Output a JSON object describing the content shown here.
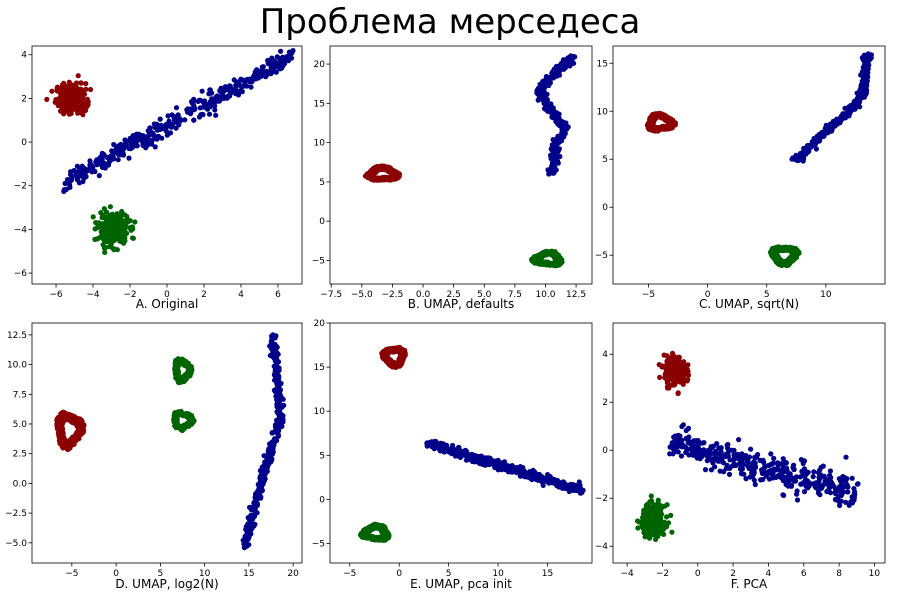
{
  "title": "Проблема мерседеса",
  "colors": {
    "red": "#8b0000",
    "green": "#006400",
    "blue": "#00008b"
  },
  "chart_data": [
    {
      "type": "scatter",
      "label": "A. Original",
      "xlim": [
        -7.3,
        7.3
      ],
      "ylim": [
        -6.5,
        4.4
      ],
      "xticks": [
        -6,
        -4,
        -2,
        0,
        2,
        4,
        6
      ],
      "yticks": [
        -6,
        -4,
        -2,
        0,
        2,
        4
      ],
      "series": [
        {
          "color": "red",
          "shape": "blob",
          "center": [
            -5.2,
            2.0
          ],
          "spread": [
            0.8,
            0.7
          ],
          "n": 260
        },
        {
          "color": "green",
          "shape": "blob",
          "center": [
            -2.9,
            -4.0
          ],
          "spread": [
            0.8,
            0.7
          ],
          "n": 300
        },
        {
          "color": "blue",
          "shape": "line",
          "from": [
            -5.5,
            -1.8
          ],
          "to": [
            6.8,
            3.9
          ],
          "width": 0.55,
          "n": 420
        }
      ]
    },
    {
      "type": "scatter",
      "label": "B. UMAP, defaults",
      "xlim": [
        -7.6,
        13.8
      ],
      "ylim": [
        -8.0,
        22.3
      ],
      "xticks": [
        -7.5,
        -5.0,
        -2.5,
        0.0,
        2.5,
        5.0,
        7.5,
        10.0,
        12.5
      ],
      "yticks": [
        -5,
        0,
        5,
        10,
        15,
        20
      ],
      "series": [
        {
          "color": "red",
          "shape": "ring",
          "center": [
            -3.3,
            6.0
          ],
          "spread": [
            2.7,
            1.8
          ],
          "n": 320
        },
        {
          "color": "green",
          "shape": "ring",
          "center": [
            10.2,
            -4.8
          ],
          "spread": [
            2.4,
            1.8
          ],
          "n": 320
        },
        {
          "color": "blue",
          "shape": "path",
          "points": [
            [
              12.2,
              20.8
            ],
            [
              11.2,
              19.5
            ],
            [
              9.5,
              16.8
            ],
            [
              10.1,
              14.8
            ],
            [
              10.7,
              13.5
            ],
            [
              11.6,
              12.0
            ],
            [
              10.8,
              9.5
            ],
            [
              10.5,
              6.0
            ]
          ],
          "width": 0.55,
          "n": 380
        }
      ]
    },
    {
      "type": "scatter",
      "label": "C. UMAP, sqrt(N)",
      "xlim": [
        -8.0,
        15.0
      ],
      "ylim": [
        -8.0,
        16.8
      ],
      "xticks": [
        -5,
        0,
        5,
        10
      ],
      "yticks": [
        -5,
        0,
        5,
        10,
        15
      ],
      "series": [
        {
          "color": "red",
          "shape": "ring",
          "center": [
            -4.0,
            8.8
          ],
          "spread": [
            2.3,
            1.8
          ],
          "n": 320
        },
        {
          "color": "green",
          "shape": "ring",
          "center": [
            6.5,
            -5.0
          ],
          "spread": [
            2.3,
            2.0
          ],
          "n": 320
        },
        {
          "color": "blue",
          "shape": "path",
          "points": [
            [
              7.5,
              4.8
            ],
            [
              10.0,
              8.0
            ],
            [
              12.2,
              10.2
            ],
            [
              13.2,
              12.0
            ],
            [
              13.5,
              15.8
            ]
          ],
          "width": 0.45,
          "n": 380
        }
      ]
    },
    {
      "type": "scatter",
      "label": "D. UMAP, log2(N)",
      "xlim": [
        -9.5,
        21.0
      ],
      "ylim": [
        -6.7,
        13.5
      ],
      "xticks": [
        -5,
        0,
        5,
        10,
        15,
        20
      ],
      "yticks": [
        -5.0,
        -2.5,
        0.0,
        2.5,
        5.0,
        7.5,
        10.0,
        12.5
      ],
      "series": [
        {
          "color": "red",
          "shape": "ring",
          "center": [
            -5.3,
            4.5
          ],
          "spread": [
            3.0,
            3.0
          ],
          "n": 340
        },
        {
          "color": "green",
          "shape": "ring",
          "center": [
            7.5,
            9.5
          ],
          "spread": [
            2.0,
            2.0
          ],
          "n": 170
        },
        {
          "color": "green",
          "shape": "ring",
          "center": [
            7.5,
            5.3
          ],
          "spread": [
            2.3,
            1.6
          ],
          "n": 170
        },
        {
          "color": "blue",
          "shape": "path",
          "points": [
            [
              14.5,
              -5.5
            ],
            [
              16.0,
              -1.0
            ],
            [
              17.2,
              2.0
            ],
            [
              18.5,
              5.5
            ],
            [
              18.2,
              9.0
            ],
            [
              17.6,
              12.5
            ]
          ],
          "width": 0.55,
          "n": 420
        }
      ]
    },
    {
      "type": "scatter",
      "label": "E. UMAP, pca init",
      "xlim": [
        -7.0,
        19.5
      ],
      "ylim": [
        -7.2,
        20.0
      ],
      "xticks": [
        -5,
        0,
        5,
        10,
        15
      ],
      "yticks": [
        -5,
        0,
        5,
        10,
        15,
        20
      ],
      "series": [
        {
          "color": "red",
          "shape": "ring",
          "center": [
            -0.5,
            16.2
          ],
          "spread": [
            2.3,
            2.2
          ],
          "n": 320
        },
        {
          "color": "green",
          "shape": "ring",
          "center": [
            -2.4,
            -3.8
          ],
          "spread": [
            2.8,
            1.8
          ],
          "n": 320
        },
        {
          "color": "blue",
          "shape": "line",
          "from": [
            2.8,
            6.4
          ],
          "to": [
            18.6,
            1.0
          ],
          "width": 0.45,
          "n": 420
        }
      ]
    },
    {
      "type": "scatter",
      "label": "F. PCA",
      "xlim": [
        -4.8,
        10.6
      ],
      "ylim": [
        -4.7,
        5.3
      ],
      "xticks": [
        -4,
        -2,
        0,
        2,
        4,
        6,
        8,
        10
      ],
      "yticks": [
        -4,
        -2,
        0,
        2,
        4
      ],
      "series": [
        {
          "color": "red",
          "shape": "blob",
          "center": [
            -1.3,
            3.3
          ],
          "spread": [
            0.6,
            0.6
          ],
          "n": 260
        },
        {
          "color": "green",
          "shape": "blob",
          "center": [
            -2.5,
            -2.9
          ],
          "spread": [
            0.65,
            0.6
          ],
          "n": 300
        },
        {
          "color": "blue",
          "shape": "line",
          "from": [
            -1.5,
            0.3
          ],
          "to": [
            9.0,
            -1.8
          ],
          "width": 0.6,
          "n": 420
        }
      ]
    }
  ]
}
